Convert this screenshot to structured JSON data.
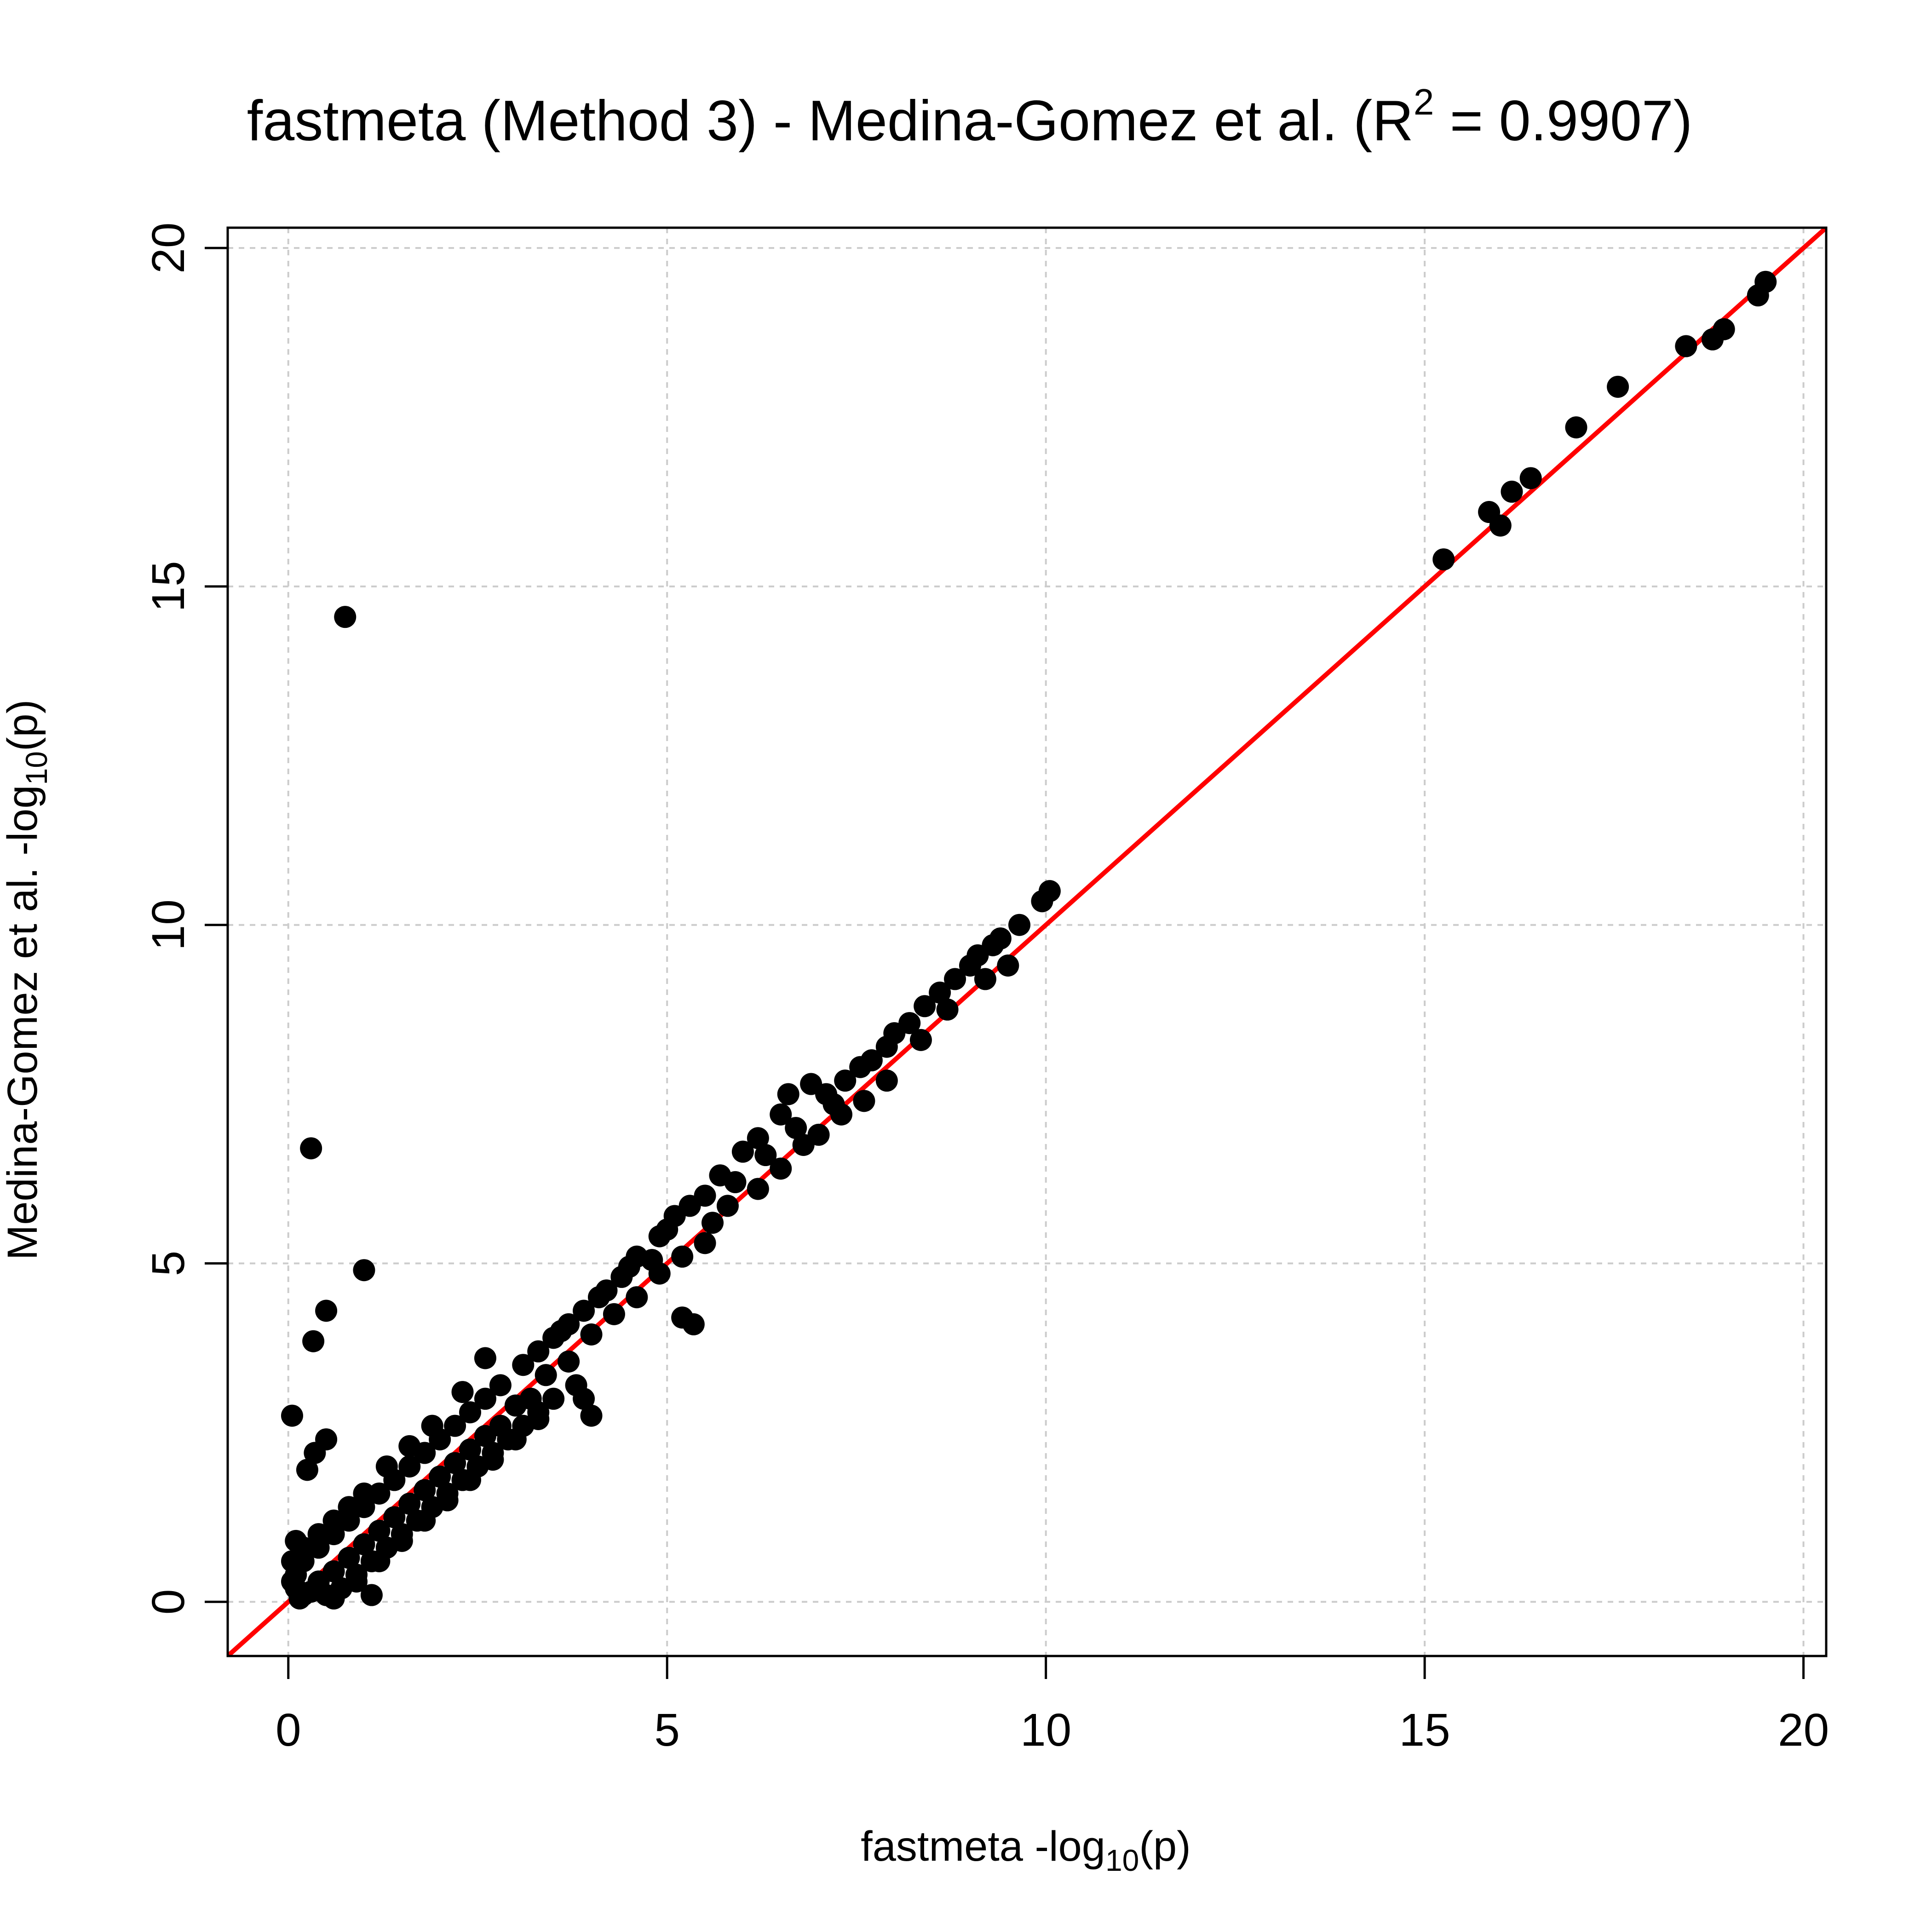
{
  "chart_data": {
    "type": "scatter",
    "title": "fastmeta (Method 3) - Medina-Gomez et al. (R",
    "title_sup": "2",
    "title_tail": " = 0.9907)",
    "xlabel": "fastmeta -log",
    "xlabel_sub": "10",
    "xlabel_tail": "(p)",
    "ylabel": "Medina-Gomez et al.  -log",
    "ylabel_sub": "10",
    "ylabel_tail": "(p)",
    "xlim": [
      -0.8,
      20.3
    ],
    "ylim": [
      -0.8,
      20.3
    ],
    "x_ticks": [
      0,
      5,
      10,
      15,
      20
    ],
    "y_ticks": [
      0,
      5,
      10,
      15,
      20
    ],
    "x_tick_labels": [
      "0",
      "5",
      "10",
      "15",
      "20"
    ],
    "y_tick_labels": [
      "0",
      "5",
      "10",
      "15",
      "20"
    ],
    "grid": true,
    "reference_line": {
      "slope": 1,
      "intercept": 0,
      "color": "#ff0000"
    },
    "point_color": "#000000",
    "points": [
      [
        0.75,
        14.55
      ],
      [
        0.3,
        6.7
      ],
      [
        1.0,
        4.9
      ],
      [
        0.5,
        4.3
      ],
      [
        0.33,
        3.85
      ],
      [
        0.05,
        2.75
      ],
      [
        0.5,
        2.4
      ],
      [
        0.35,
        2.2
      ],
      [
        0.25,
        1.95
      ],
      [
        5.2,
        4.2
      ],
      [
        5.35,
        4.1
      ],
      [
        4.0,
        2.75
      ],
      [
        3.9,
        3.0
      ],
      [
        15.25,
        15.4
      ],
      [
        15.85,
        16.1
      ],
      [
        16.0,
        15.9
      ],
      [
        16.15,
        16.4
      ],
      [
        16.4,
        16.6
      ],
      [
        17.0,
        17.35
      ],
      [
        17.55,
        17.95
      ],
      [
        18.45,
        18.55
      ],
      [
        18.8,
        18.65
      ],
      [
        18.95,
        18.8
      ],
      [
        19.4,
        19.3
      ],
      [
        19.5,
        19.5
      ],
      [
        10.05,
        10.5
      ],
      [
        9.95,
        10.35
      ],
      [
        9.65,
        10.0
      ],
      [
        9.4,
        9.8
      ],
      [
        9.3,
        9.7
      ],
      [
        9.1,
        9.55
      ],
      [
        9.0,
        9.4
      ],
      [
        8.8,
        9.2
      ],
      [
        8.6,
        9.0
      ],
      [
        8.4,
        8.8
      ],
      [
        8.2,
        8.55
      ],
      [
        8.0,
        8.4
      ],
      [
        7.9,
        8.2
      ],
      [
        7.7,
        8.0
      ],
      [
        7.55,
        7.9
      ],
      [
        7.35,
        7.7
      ],
      [
        7.1,
        7.5
      ],
      [
        6.9,
        7.65
      ],
      [
        6.6,
        7.5
      ],
      [
        6.5,
        7.2
      ],
      [
        6.2,
        6.85
      ],
      [
        6.0,
        6.65
      ],
      [
        5.7,
        6.3
      ],
      [
        5.5,
        6.0
      ],
      [
        5.3,
        5.85
      ],
      [
        5.1,
        5.7
      ],
      [
        4.9,
        5.4
      ],
      [
        4.6,
        5.1
      ],
      [
        4.4,
        4.8
      ],
      [
        4.1,
        4.5
      ],
      [
        3.9,
        4.3
      ],
      [
        3.7,
        4.1
      ],
      [
        3.5,
        3.9
      ],
      [
        3.3,
        3.7
      ],
      [
        3.1,
        3.5
      ],
      [
        9.5,
        9.4
      ],
      [
        9.2,
        9.2
      ],
      [
        8.7,
        8.75
      ],
      [
        8.35,
        8.3
      ],
      [
        7.9,
        7.7
      ],
      [
        7.6,
        7.4
      ],
      [
        7.3,
        7.2
      ],
      [
        7.0,
        6.9
      ],
      [
        6.8,
        6.75
      ],
      [
        6.5,
        6.4
      ],
      [
        6.2,
        6.1
      ],
      [
        5.8,
        5.85
      ],
      [
        5.5,
        5.3
      ],
      [
        5.2,
        5.1
      ],
      [
        4.9,
        4.85
      ],
      [
        4.6,
        4.5
      ],
      [
        4.3,
        4.25
      ],
      [
        4.0,
        3.95
      ],
      [
        3.7,
        3.55
      ],
      [
        3.4,
        3.35
      ],
      [
        3.2,
        3.0
      ],
      [
        3.0,
        2.9
      ],
      [
        2.8,
        2.6
      ],
      [
        2.6,
        2.45
      ],
      [
        2.4,
        2.25
      ],
      [
        2.2,
        2.05
      ],
      [
        2.0,
        1.85
      ],
      [
        1.8,
        1.65
      ],
      [
        1.6,
        1.45
      ],
      [
        1.4,
        1.25
      ],
      [
        1.2,
        1.05
      ],
      [
        1.0,
        0.85
      ],
      [
        0.8,
        0.65
      ],
      [
        0.6,
        0.45
      ],
      [
        0.4,
        0.3
      ],
      [
        2.8,
        3.2
      ],
      [
        2.6,
        3.0
      ],
      [
        2.4,
        2.8
      ],
      [
        2.2,
        2.6
      ],
      [
        2.0,
        2.4
      ],
      [
        1.8,
        2.2
      ],
      [
        1.6,
        2.0
      ],
      [
        1.4,
        1.8
      ],
      [
        1.2,
        1.6
      ],
      [
        1.0,
        1.4
      ],
      [
        0.8,
        1.2
      ],
      [
        0.6,
        1.0
      ],
      [
        0.4,
        0.8
      ],
      [
        0.2,
        0.6
      ],
      [
        0.1,
        0.4
      ],
      [
        3.3,
        2.8
      ],
      [
        3.1,
        2.6
      ],
      [
        2.9,
        2.4
      ],
      [
        2.7,
        2.2
      ],
      [
        2.5,
        2.0
      ],
      [
        2.3,
        1.8
      ],
      [
        2.1,
        1.6
      ],
      [
        1.9,
        1.4
      ],
      [
        1.7,
        1.2
      ],
      [
        1.5,
        1.0
      ],
      [
        1.3,
        0.8
      ],
      [
        1.1,
        0.6
      ],
      [
        0.9,
        0.4
      ],
      [
        0.7,
        0.2
      ],
      [
        0.5,
        0.1
      ],
      [
        2.6,
        3.6
      ],
      [
        2.3,
        3.1
      ],
      [
        1.9,
        2.6
      ],
      [
        1.6,
        2.3
      ],
      [
        1.3,
        2.0
      ],
      [
        1.0,
        1.6
      ],
      [
        0.8,
        1.4
      ],
      [
        0.6,
        1.2
      ],
      [
        0.4,
        1.0
      ],
      [
        0.2,
        0.8
      ],
      [
        3.8,
        3.2
      ],
      [
        3.5,
        3.0
      ],
      [
        3.3,
        2.7
      ],
      [
        3.0,
        2.4
      ],
      [
        2.7,
        2.1
      ],
      [
        2.4,
        1.8
      ],
      [
        2.1,
        1.5
      ],
      [
        1.8,
        1.2
      ],
      [
        1.5,
        0.9
      ],
      [
        1.2,
        0.6
      ],
      [
        0.9,
        0.3
      ],
      [
        1.1,
        0.1
      ],
      [
        0.15,
        0.05
      ],
      [
        0.3,
        0.15
      ],
      [
        0.05,
        0.3
      ],
      [
        0.1,
        0.2
      ],
      [
        0.2,
        0.1
      ],
      [
        0.05,
        0.6
      ],
      [
        0.1,
        0.9
      ],
      [
        0.6,
        0.05
      ],
      [
        3.6,
        4.0
      ],
      [
        4.2,
        4.6
      ],
      [
        4.5,
        4.95
      ],
      [
        4.8,
        5.05
      ],
      [
        5.0,
        5.5
      ],
      [
        5.6,
        5.6
      ],
      [
        5.9,
        6.2
      ],
      [
        6.3,
        6.6
      ],
      [
        6.7,
        7.0
      ],
      [
        7.2,
        7.35
      ]
    ]
  }
}
